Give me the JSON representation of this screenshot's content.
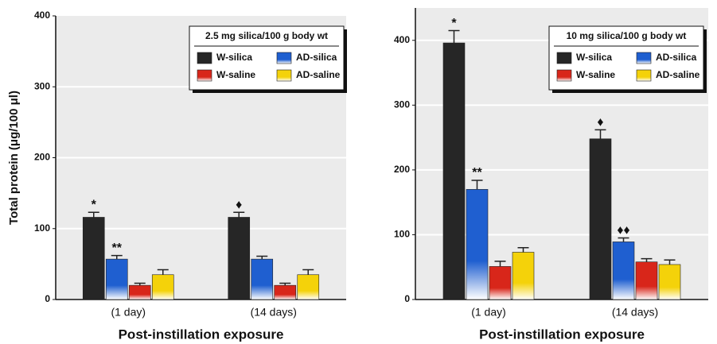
{
  "chart_data": [
    {
      "type": "bar",
      "legend_title": "2.5 mg silica/100 g body wt",
      "y_label": "Total protein (μg/100 μl)",
      "x_label": "Post-instillation exposure",
      "categories": [
        "(1 day)",
        "(14 days)"
      ],
      "series": [
        {
          "name": "W-silica",
          "color": "#262626",
          "gradient": false,
          "values": [
            116,
            116
          ],
          "errors": [
            7,
            7
          ]
        },
        {
          "name": "AD-silica",
          "color": "#1f5fd0",
          "gradient": true,
          "values": [
            57,
            57
          ],
          "errors": [
            5,
            4
          ]
        },
        {
          "name": "W-saline",
          "color": "#d8261a",
          "gradient": true,
          "values": [
            20,
            20
          ],
          "errors": [
            3,
            3
          ]
        },
        {
          "name": "AD-saline",
          "color": "#f4d20a",
          "gradient": true,
          "values": [
            35,
            35
          ],
          "errors": [
            7,
            7
          ]
        }
      ],
      "annotations": [
        {
          "text": "*",
          "series": "W-silica",
          "category": "(1 day)"
        },
        {
          "text": "**",
          "series": "AD-silica",
          "category": "(1 day)"
        },
        {
          "text": "♦",
          "series": "W-silica",
          "category": "(14 days)"
        }
      ],
      "ylim": [
        0,
        400
      ],
      "yticks": [
        0,
        100,
        200,
        300,
        400
      ],
      "grid": true
    },
    {
      "type": "bar",
      "legend_title": "10 mg silica/100 g body wt",
      "x_label": "Post-instillation exposure",
      "categories": [
        "(1 day)",
        "(14 days)"
      ],
      "series": [
        {
          "name": "W-silica",
          "color": "#262626",
          "gradient": false,
          "values": [
            396,
            248
          ],
          "errors": [
            19,
            14
          ]
        },
        {
          "name": "AD-silica",
          "color": "#1f5fd0",
          "gradient": true,
          "values": [
            170,
            89
          ],
          "errors": [
            14,
            6
          ]
        },
        {
          "name": "W-saline",
          "color": "#d8261a",
          "gradient": true,
          "values": [
            51,
            58
          ],
          "errors": [
            8,
            5
          ]
        },
        {
          "name": "AD-saline",
          "color": "#f4d20a",
          "gradient": true,
          "values": [
            73,
            54
          ],
          "errors": [
            7,
            7
          ]
        }
      ],
      "annotations": [
        {
          "text": "*",
          "series": "W-silica",
          "category": "(1 day)"
        },
        {
          "text": "**",
          "series": "AD-silica",
          "category": "(1 day)"
        },
        {
          "text": "♦",
          "series": "W-silica",
          "category": "(14 days)"
        },
        {
          "text": "♦♦",
          "series": "AD-silica",
          "category": "(14 days)"
        }
      ],
      "ylim": [
        0,
        450
      ],
      "yticks": [
        0,
        100,
        200,
        300,
        400
      ],
      "grid": true
    }
  ]
}
